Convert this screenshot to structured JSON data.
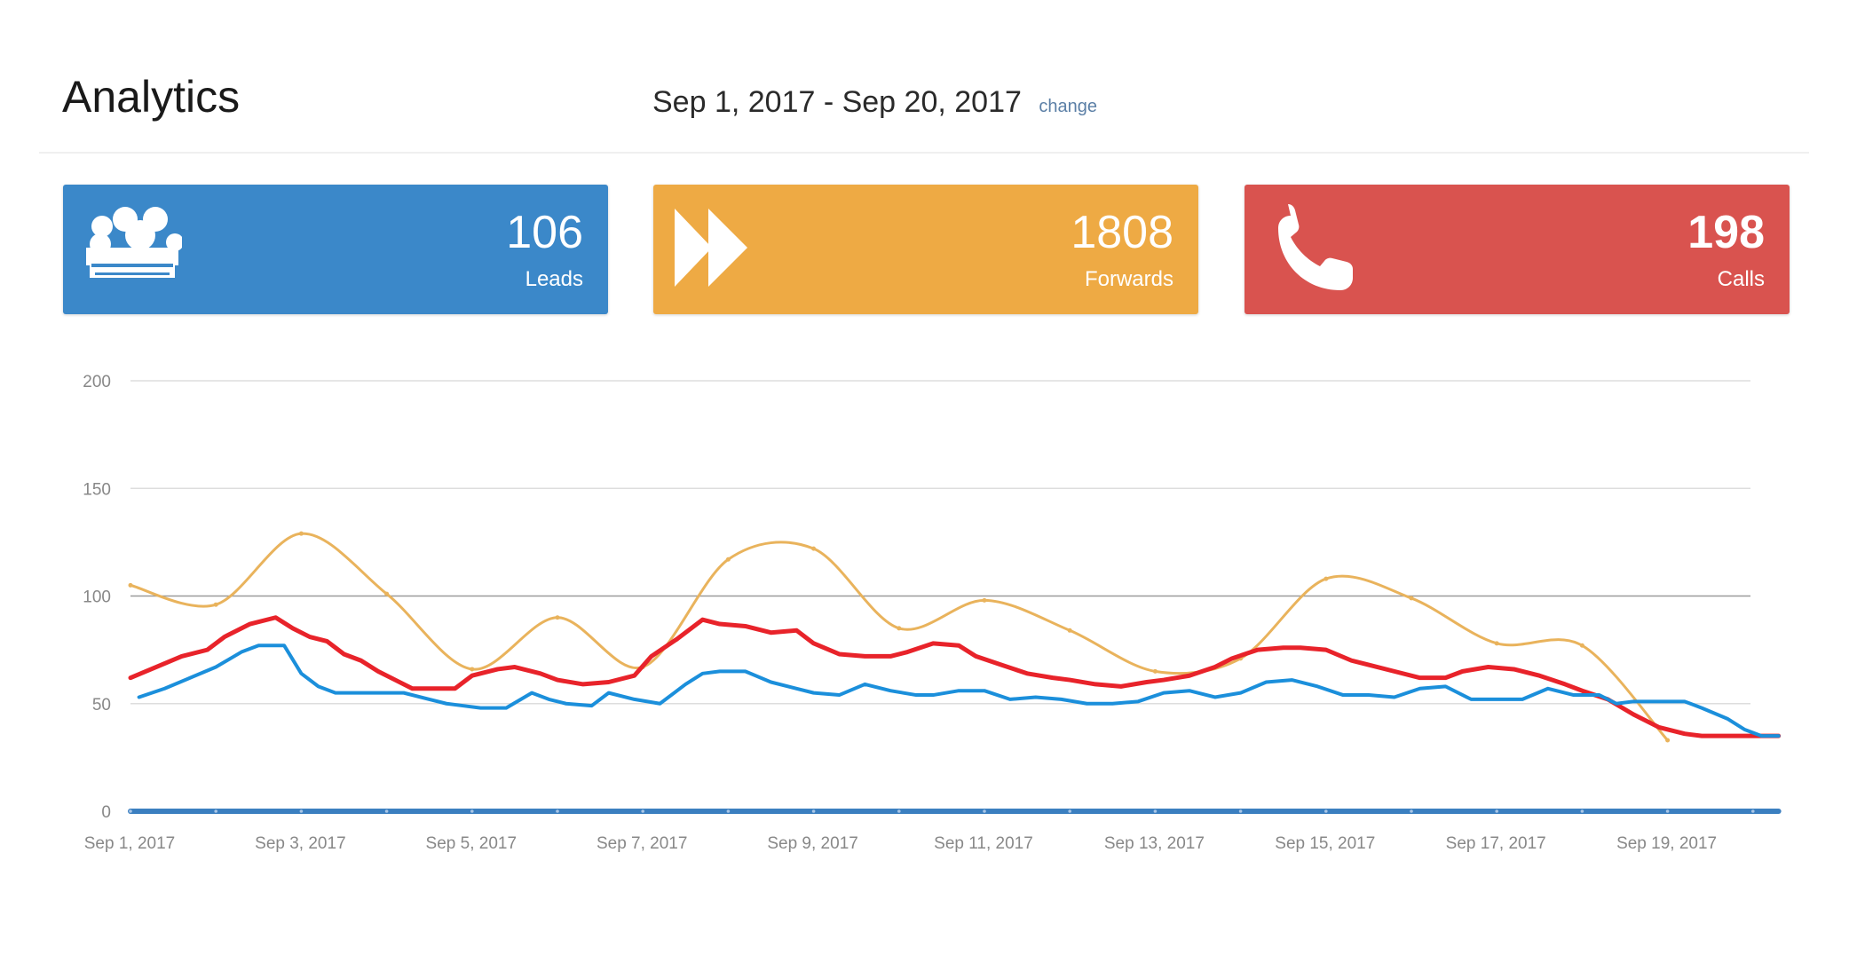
{
  "header": {
    "title": "Analytics",
    "date_range": "Sep 1, 2017 - Sep 20, 2017",
    "change_label": "change"
  },
  "cards": {
    "leads": {
      "value": "106",
      "label": "Leads",
      "icon": "group-icon",
      "color": "#3b88c9"
    },
    "forwards": {
      "value": "1808",
      "label": "Forwards",
      "icon": "fast-forward-icon",
      "color": "#eeaa44"
    },
    "calls": {
      "value": "198",
      "label": "Calls",
      "icon": "phone-icon",
      "color": "#d9534f"
    }
  },
  "chart_data": {
    "type": "line",
    "ylim": [
      0,
      200
    ],
    "y_ticks": [
      0,
      50,
      100,
      150,
      200
    ],
    "x_tick_labels": [
      "Sep 1, 2017",
      "Sep 3, 2017",
      "Sep 5, 2017",
      "Sep 7, 2017",
      "Sep 9, 2017",
      "Sep 11, 2017",
      "Sep 13, 2017",
      "Sep 15, 2017",
      "Sep 17, 2017",
      "Sep 19, 2017"
    ],
    "grid": true,
    "series": [
      {
        "color": "#e9b35c",
        "smooth": true,
        "x": [
          0,
          1,
          2,
          3,
          4,
          5,
          6,
          7,
          8,
          9,
          10,
          11,
          12,
          13,
          14,
          15,
          16,
          17,
          18,
          19
        ],
        "y": [
          105,
          96,
          129,
          101,
          66,
          90,
          67,
          117,
          122,
          85,
          98,
          84,
          65,
          71,
          108,
          99,
          78,
          77,
          33,
          null
        ]
      },
      {
        "color": "#e8232a",
        "smooth": false,
        "x": [
          0,
          0.3,
          0.6,
          0.9,
          1.1,
          1.4,
          1.7,
          1.9,
          2.1,
          2.3,
          2.5,
          2.7,
          2.9,
          3.1,
          3.3,
          3.5,
          3.8,
          4.0,
          4.3,
          4.5,
          4.8,
          5.0,
          5.3,
          5.6,
          5.9,
          6.1,
          6.4,
          6.7,
          6.9,
          7.2,
          7.5,
          7.8,
          8.0,
          8.3,
          8.6,
          8.9,
          9.1,
          9.4,
          9.7,
          9.9,
          10.2,
          10.5,
          10.8,
          11.0,
          11.3,
          11.6,
          11.9,
          12.1,
          12.4,
          12.7,
          12.9,
          13.2,
          13.5,
          13.7,
          14.0,
          14.3,
          14.5,
          14.8,
          15.1,
          15.4,
          15.6,
          15.9,
          16.2,
          16.5,
          16.8,
          17.0,
          17.3,
          17.6,
          17.9,
          18.2,
          18.4,
          18.7,
          18.9,
          19.1,
          19.3
        ],
        "y": [
          62,
          67,
          72,
          75,
          81,
          87,
          90,
          85,
          81,
          79,
          73,
          70,
          65,
          61,
          57,
          57,
          57,
          63,
          66,
          67,
          64,
          61,
          59,
          60,
          63,
          72,
          80,
          89,
          87,
          86,
          83,
          84,
          78,
          73,
          72,
          72,
          74,
          78,
          77,
          72,
          68,
          64,
          62,
          61,
          59,
          58,
          60,
          61,
          63,
          67,
          71,
          75,
          76,
          76,
          75,
          70,
          68,
          65,
          62,
          62,
          65,
          67,
          66,
          63,
          59,
          56,
          52,
          45,
          39,
          36,
          35,
          35,
          35,
          35,
          35
        ]
      },
      {
        "color": "#1b8fdb",
        "smooth": false,
        "x": [
          0.1,
          0.4,
          0.7,
          1.0,
          1.3,
          1.5,
          1.8,
          2.0,
          2.2,
          2.4,
          2.6,
          2.9,
          3.2,
          3.5,
          3.7,
          3.9,
          4.1,
          4.4,
          4.7,
          4.9,
          5.1,
          5.4,
          5.6,
          5.9,
          6.2,
          6.5,
          6.7,
          6.9,
          7.2,
          7.5,
          7.8,
          8.0,
          8.3,
          8.6,
          8.9,
          9.2,
          9.4,
          9.7,
          10.0,
          10.3,
          10.6,
          10.9,
          11.2,
          11.5,
          11.8,
          12.1,
          12.4,
          12.7,
          13.0,
          13.3,
          13.6,
          13.9,
          14.2,
          14.5,
          14.8,
          15.1,
          15.4,
          15.7,
          16.0,
          16.3,
          16.6,
          16.9,
          17.2,
          17.4,
          17.6,
          17.9,
          18.2,
          18.4,
          18.7,
          18.9,
          19.1,
          19.3
        ],
        "y": [
          53,
          57,
          62,
          67,
          74,
          77,
          77,
          64,
          58,
          55,
          55,
          55,
          55,
          52,
          50,
          49,
          48,
          48,
          55,
          52,
          50,
          49,
          55,
          52,
          50,
          59,
          64,
          65,
          65,
          60,
          57,
          55,
          54,
          59,
          56,
          54,
          54,
          56,
          56,
          52,
          53,
          52,
          50,
          50,
          51,
          55,
          56,
          53,
          55,
          60,
          61,
          58,
          54,
          54,
          53,
          57,
          58,
          52,
          52,
          52,
          57,
          54,
          54,
          50,
          51,
          51,
          51,
          48,
          43,
          38,
          35,
          35
        ]
      },
      {
        "color": "#3b7fc0",
        "smooth": false,
        "x": [
          0,
          19.3
        ],
        "y": [
          0,
          0
        ]
      }
    ]
  }
}
